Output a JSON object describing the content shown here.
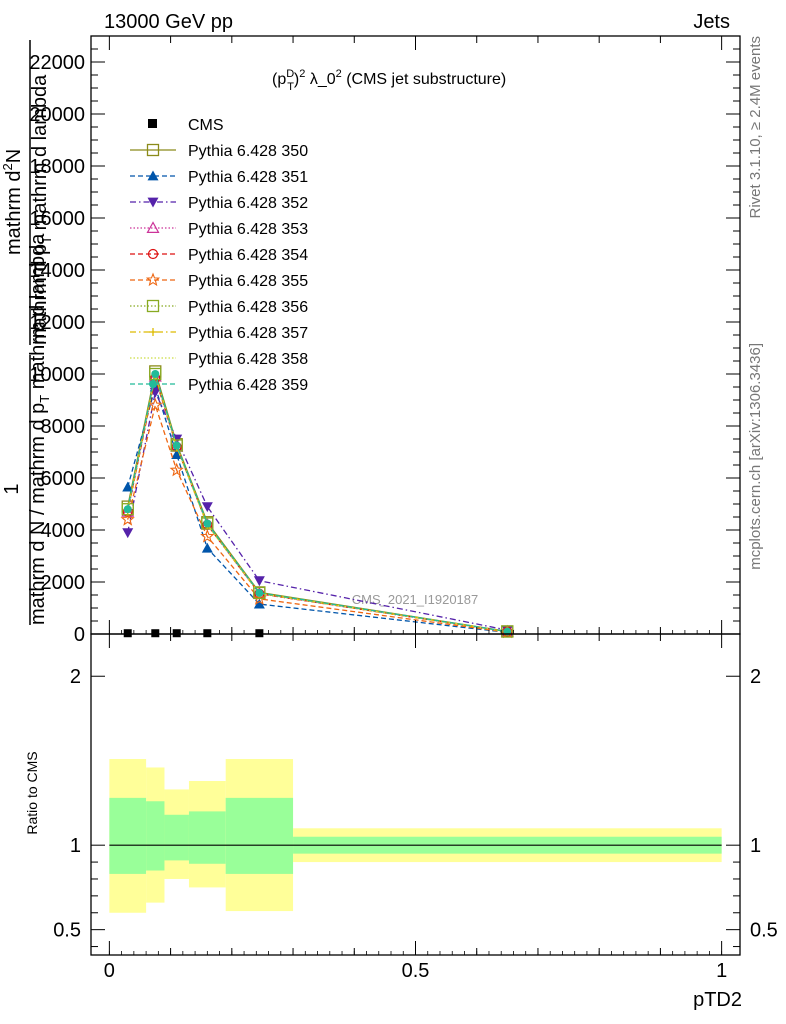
{
  "header": {
    "energy_label": "13000 GeV pp",
    "process_label": "Jets"
  },
  "side_labels": {
    "rivet": "Rivet 3.1.10, ≥ 2.4M events",
    "mcplots": "mcplots.cern.ch [arXiv:1306.3436]"
  },
  "watermark": "CMS_2021_I1920187",
  "colors": {
    "band_inner": "#99ff99",
    "band_outer": "#ffff99",
    "data_marker": "#000000"
  },
  "chart_data": [
    {
      "type": "line",
      "title_parts": {
        "p": "(p",
        "sup1": "D",
        "sub": "T",
        "close": ")",
        "sup2": "2",
        "rest": " λ_0",
        "sup3": "2",
        "tail": " (CMS jet substructure)"
      },
      "ylabel_lines": [
        "1",
        "mathrm d N / mathrm d p_T mathrm d lambda",
        "mathrm d^2N",
        "mathrm d p_T mathrm d lambda"
      ],
      "ylabel": {
        "one": "1",
        "den": "mathrm d N / mathrm d",
        "pT": "p",
        "sub_T": "T",
        "after_pT": " mathrm d lambda",
        "num_top": "mathrm d",
        "num_sup": "2",
        "num_tail": "N",
        "den_part1": "mathrm d p",
        "den_sub": "T",
        "den_part2": " mathrm d lambda"
      },
      "ylim": [
        0,
        23000
      ],
      "yticks": [
        0,
        2000,
        4000,
        6000,
        8000,
        10000,
        12000,
        14000,
        16000,
        18000,
        20000,
        22000
      ],
      "ytick_labels": [
        "0",
        "2000",
        "4000",
        "6000",
        "8000",
        "10000",
        "12000",
        "14000",
        "16000",
        "18000",
        "20000",
        "22000"
      ],
      "xlim": [
        -0.03,
        1.03
      ],
      "legend_position": "top-left",
      "data": {
        "name": "CMS",
        "x": [
          0.03,
          0.075,
          0.11,
          0.16,
          0.245
        ],
        "y": [
          30,
          30,
          30,
          30,
          30
        ]
      },
      "series": [
        {
          "name": "Pythia 6.428 350",
          "color": "#8b8b1a",
          "dash": "",
          "marker": "square_open",
          "x": [
            0.03,
            0.075,
            0.11,
            0.16,
            0.245,
            0.65
          ],
          "y": [
            4900,
            10100,
            7300,
            4300,
            1600,
            100
          ]
        },
        {
          "name": "Pythia 6.428 351",
          "color": "#0055aa",
          "dash": "5,3",
          "marker": "triangle_up",
          "x": [
            0.03,
            0.075,
            0.11,
            0.16,
            0.245,
            0.65
          ],
          "y": [
            5650,
            9500,
            6900,
            3300,
            1150,
            60
          ]
        },
        {
          "name": "Pythia 6.428 352",
          "color": "#5522aa",
          "dash": "6,3,1.5,3",
          "marker": "triangle_down",
          "x": [
            0.03,
            0.075,
            0.11,
            0.16,
            0.245,
            0.65
          ],
          "y": [
            3900,
            9300,
            7500,
            4900,
            2050,
            150
          ]
        },
        {
          "name": "Pythia 6.428 353",
          "color": "#cc3399",
          "dash": "1.5,2",
          "marker": "triangle_open",
          "x": [
            0.03,
            0.075,
            0.11,
            0.16,
            0.245,
            0.65
          ],
          "y": [
            4700,
            9900,
            7200,
            4200,
            1550,
            90
          ]
        },
        {
          "name": "Pythia 6.428 354",
          "color": "#dd1111",
          "dash": "5,3",
          "marker": "circle_open",
          "x": [
            0.03,
            0.075,
            0.11,
            0.16,
            0.245,
            0.65
          ],
          "y": [
            4700,
            9850,
            7200,
            4200,
            1550,
            90
          ]
        },
        {
          "name": "Pythia 6.428 355",
          "color": "#ee6611",
          "dash": "5,3",
          "marker": "star",
          "x": [
            0.03,
            0.075,
            0.11,
            0.16,
            0.245,
            0.65
          ],
          "y": [
            4400,
            8800,
            6300,
            3750,
            1350,
            70
          ]
        },
        {
          "name": "Pythia 6.428 356",
          "color": "#88aa22",
          "dash": "1.5,2",
          "marker": "square_open",
          "x": [
            0.03,
            0.075,
            0.11,
            0.16,
            0.245,
            0.65
          ],
          "y": [
            4800,
            10000,
            7250,
            4250,
            1580,
            95
          ]
        },
        {
          "name": "Pythia 6.428 357",
          "color": "#ddbb00",
          "dash": "6,3,1.5,3",
          "marker": "plus",
          "x": [
            0.03,
            0.075,
            0.11,
            0.16,
            0.245,
            0.65
          ],
          "y": [
            4750,
            9950,
            7200,
            4200,
            1560,
            90
          ]
        },
        {
          "name": "Pythia 6.428 358",
          "color": "#ccdd44",
          "dash": "1.5,2",
          "marker": "none",
          "x": [
            0.03,
            0.075,
            0.11,
            0.16,
            0.245,
            0.65
          ],
          "y": [
            4750,
            9950,
            7200,
            4200,
            1560,
            90
          ]
        },
        {
          "name": "Pythia 6.428 359",
          "color": "#22bb99",
          "dash": "5,3",
          "marker": "circle_filled",
          "x": [
            0.03,
            0.075,
            0.11,
            0.16,
            0.245,
            0.65
          ],
          "y": [
            4800,
            10000,
            7250,
            4250,
            1580,
            95
          ]
        }
      ]
    },
    {
      "type": "area",
      "ylabel": "Ratio to CMS",
      "xlabel": "pTD2",
      "ylim": [
        0.35,
        2.25
      ],
      "yticks": [
        0.5,
        1,
        2
      ],
      "ytick_labels": [
        "0.5",
        "1",
        "2"
      ],
      "xlim": [
        -0.03,
        1.03
      ],
      "xticks": [
        0,
        0.5,
        1
      ],
      "xtick_labels": [
        "0",
        "0.5",
        "1"
      ],
      "reference_line": 1,
      "bins": [
        {
          "x_low": 0.0,
          "x_high": 0.06,
          "inner": [
            0.83,
            1.28
          ],
          "outer": [
            0.6,
            1.51
          ]
        },
        {
          "x_low": 0.06,
          "x_high": 0.09,
          "inner": [
            0.85,
            1.26
          ],
          "outer": [
            0.66,
            1.46
          ]
        },
        {
          "x_low": 0.09,
          "x_high": 0.13,
          "inner": [
            0.91,
            1.18
          ],
          "outer": [
            0.8,
            1.33
          ]
        },
        {
          "x_low": 0.13,
          "x_high": 0.19,
          "inner": [
            0.89,
            1.2
          ],
          "outer": [
            0.75,
            1.38
          ]
        },
        {
          "x_low": 0.19,
          "x_high": 0.3,
          "inner": [
            0.83,
            1.28
          ],
          "outer": [
            0.61,
            1.51
          ]
        },
        {
          "x_low": 0.3,
          "x_high": 1.0,
          "inner": [
            0.95,
            1.05
          ],
          "outer": [
            0.9,
            1.1
          ]
        }
      ]
    }
  ]
}
